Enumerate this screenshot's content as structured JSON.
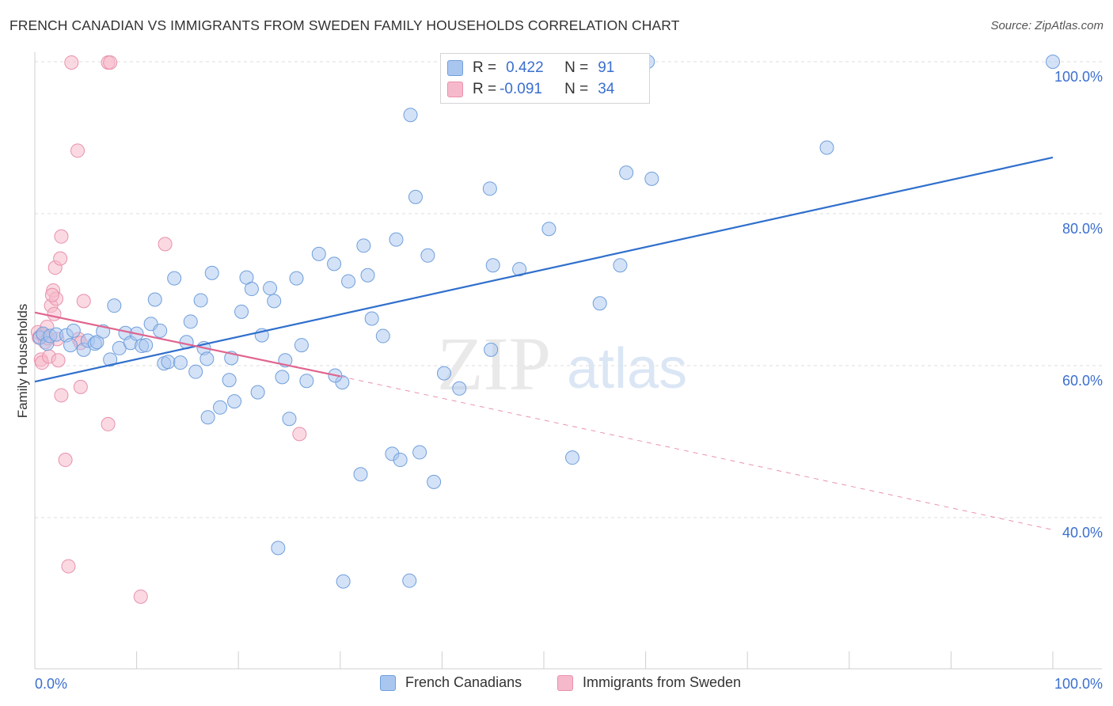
{
  "title": "FRENCH CANADIAN VS IMMIGRANTS FROM SWEDEN FAMILY HOUSEHOLDS CORRELATION CHART",
  "source": "Source: ZipAtlas.com",
  "watermark": {
    "zip": "ZIP",
    "atlas": "atlas"
  },
  "legend": {
    "r_label": "R =",
    "n_label": "N =",
    "series": [
      {
        "r": "0.422",
        "n": "91",
        "color": "#a9c6ef"
      },
      {
        "r": "-0.091",
        "n": "34",
        "color": "#f6b9cb"
      }
    ]
  },
  "colors": {
    "blue_fill": "#a9c6ef",
    "blue_stroke": "#6f9fdc",
    "blue_line": "#2f6fcc",
    "pink_fill": "#f6b9cb",
    "pink_stroke": "#e891ab",
    "pink_line": "#e0658f",
    "axis_text": "#3a6fcf",
    "grid": "#dedede"
  },
  "chart_data": {
    "type": "scatter",
    "title": "FRENCH CANADIAN VS IMMIGRANTS FROM SWEDEN FAMILY HOUSEHOLDS CORRELATION CHART",
    "xlabel": "",
    "ylabel": "Family Households",
    "xlim": [
      0,
      100
    ],
    "ylim": [
      22,
      102
    ],
    "x_tick_labels": [
      "0.0%",
      "100.0%"
    ],
    "y_ticks": [
      40,
      60,
      80,
      100
    ],
    "y_tick_labels": [
      "40.0%",
      "60.0%",
      "80.0%",
      "100.0%"
    ],
    "grid": true,
    "legend_position": "top-center",
    "series": [
      {
        "name": "French Canadians",
        "color": "#a9c6ef",
        "trend": {
          "x0": 0,
          "y0": 57.9,
          "x1": 100,
          "y1": 87.4
        },
        "points": [
          [
            0.5,
            63.7
          ],
          [
            0.8,
            64.2
          ],
          [
            1.2,
            62.9
          ],
          [
            1.5,
            63.9
          ],
          [
            2.1,
            64.1
          ],
          [
            3.1,
            64.0
          ],
          [
            3.5,
            62.7
          ],
          [
            3.8,
            64.6
          ],
          [
            4.8,
            62.1
          ],
          [
            5.2,
            63.3
          ],
          [
            5.9,
            62.9
          ],
          [
            6.1,
            63.1
          ],
          [
            6.7,
            64.5
          ],
          [
            7.4,
            60.8
          ],
          [
            7.8,
            67.9
          ],
          [
            8.3,
            62.3
          ],
          [
            8.9,
            64.3
          ],
          [
            9.4,
            63.0
          ],
          [
            10.0,
            64.2
          ],
          [
            10.5,
            62.6
          ],
          [
            10.9,
            62.7
          ],
          [
            11.4,
            65.5
          ],
          [
            11.8,
            68.7
          ],
          [
            12.3,
            64.6
          ],
          [
            12.7,
            60.3
          ],
          [
            13.1,
            60.5
          ],
          [
            13.7,
            71.5
          ],
          [
            14.3,
            60.4
          ],
          [
            14.9,
            63.1
          ],
          [
            15.3,
            65.8
          ],
          [
            15.8,
            59.2
          ],
          [
            16.3,
            68.6
          ],
          [
            16.6,
            62.3
          ],
          [
            17.0,
            53.2
          ],
          [
            17.4,
            72.2
          ],
          [
            18.2,
            54.5
          ],
          [
            19.1,
            58.1
          ],
          [
            19.3,
            61.0
          ],
          [
            19.6,
            55.3
          ],
          [
            20.3,
            67.1
          ],
          [
            20.8,
            71.6
          ],
          [
            21.3,
            70.1
          ],
          [
            21.9,
            56.5
          ],
          [
            22.3,
            64.0
          ],
          [
            23.1,
            70.2
          ],
          [
            23.5,
            68.5
          ],
          [
            24.3,
            58.5
          ],
          [
            24.6,
            60.7
          ],
          [
            25.0,
            53.0
          ],
          [
            25.7,
            71.5
          ],
          [
            26.2,
            62.7
          ],
          [
            26.7,
            58.0
          ],
          [
            27.9,
            74.7
          ],
          [
            29.4,
            73.4
          ],
          [
            30.2,
            57.8
          ],
          [
            30.8,
            71.1
          ],
          [
            32.0,
            45.7
          ],
          [
            32.3,
            75.8
          ],
          [
            32.7,
            71.9
          ],
          [
            33.1,
            66.2
          ],
          [
            34.2,
            63.9
          ],
          [
            35.1,
            48.4
          ],
          [
            35.5,
            76.6
          ],
          [
            35.9,
            47.6
          ],
          [
            36.9,
            93.0
          ],
          [
            37.4,
            82.2
          ],
          [
            37.8,
            48.6
          ],
          [
            38.6,
            74.5
          ],
          [
            39.2,
            44.7
          ],
          [
            40.2,
            59.0
          ],
          [
            41.7,
            57.0
          ],
          [
            44.7,
            83.3
          ],
          [
            44.8,
            62.1
          ],
          [
            45.0,
            73.2
          ],
          [
            47.6,
            72.7
          ],
          [
            50.5,
            78.0
          ],
          [
            52.8,
            47.9
          ],
          [
            55.5,
            68.2
          ],
          [
            57.5,
            73.2
          ],
          [
            58.1,
            85.4
          ],
          [
            60.6,
            84.6
          ],
          [
            77.8,
            88.7
          ],
          [
            100.0,
            100.0
          ],
          [
            47.3,
            100.0
          ],
          [
            49.5,
            100.0
          ],
          [
            60.2,
            100.0
          ],
          [
            23.9,
            36.0
          ],
          [
            30.3,
            31.6
          ],
          [
            36.8,
            31.7
          ],
          [
            29.5,
            58.7
          ],
          [
            16.9,
            60.9
          ]
        ]
      },
      {
        "name": "Immigrants from Sweden",
        "color": "#f6b9cb",
        "trend": {
          "x0": 0,
          "y0": 67.0,
          "x1": 30.0,
          "y1": 58.6,
          "x2": 100,
          "y2": 38.4
        },
        "points": [
          [
            0.3,
            64.4
          ],
          [
            0.4,
            63.7
          ],
          [
            0.6,
            60.8
          ],
          [
            0.7,
            60.4
          ],
          [
            0.8,
            64.0
          ],
          [
            1.0,
            63.1
          ],
          [
            1.2,
            65.1
          ],
          [
            1.3,
            63.6
          ],
          [
            1.4,
            61.2
          ],
          [
            1.6,
            67.9
          ],
          [
            1.8,
            69.9
          ],
          [
            1.9,
            66.8
          ],
          [
            2.0,
            72.9
          ],
          [
            2.1,
            68.8
          ],
          [
            2.2,
            63.5
          ],
          [
            2.3,
            60.7
          ],
          [
            2.5,
            74.1
          ],
          [
            2.6,
            77.0
          ],
          [
            2.6,
            56.1
          ],
          [
            3.0,
            47.6
          ],
          [
            3.3,
            33.6
          ],
          [
            3.6,
            99.9
          ],
          [
            4.2,
            88.3
          ],
          [
            4.3,
            63.5
          ],
          [
            4.5,
            57.2
          ],
          [
            4.8,
            68.5
          ],
          [
            7.2,
            99.9
          ],
          [
            7.4,
            99.9
          ],
          [
            7.2,
            52.3
          ],
          [
            10.4,
            29.6
          ],
          [
            12.8,
            76.0
          ],
          [
            26.0,
            51.0
          ],
          [
            1.7,
            69.3
          ],
          [
            4.5,
            63.0
          ]
        ]
      }
    ]
  },
  "bottom_legend": [
    {
      "label": "French Canadians",
      "color": "#a9c6ef"
    },
    {
      "label": "Immigrants from Sweden",
      "color": "#f6b9cb"
    }
  ]
}
